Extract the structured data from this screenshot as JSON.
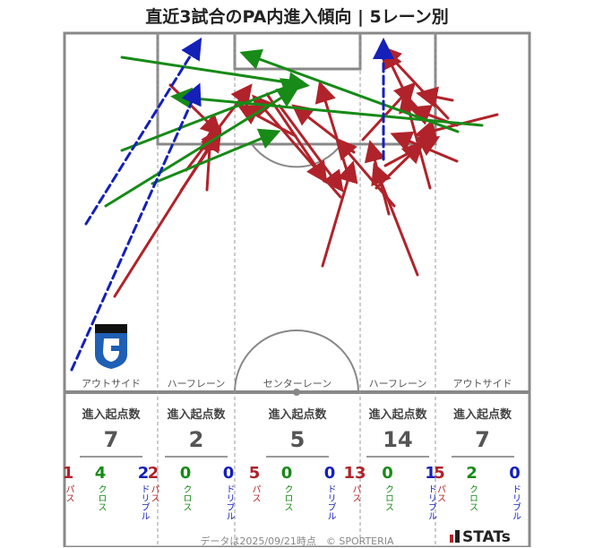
{
  "title": "直近3試合のPA内進入傾向 | 5レーン別",
  "lanes": [
    {
      "label": "アウトサイド",
      "header": "進入起点数",
      "total": "7",
      "pass": "1",
      "cross": "4",
      "dribble": "2"
    },
    {
      "label": "ハーフレーン",
      "header": "進入起点数",
      "total": "2",
      "pass": "2",
      "cross": "0",
      "dribble": "0"
    },
    {
      "label": "センターレーン",
      "header": "進入起点数",
      "total": "5",
      "pass": "5",
      "cross": "0",
      "dribble": "0"
    },
    {
      "label": "ハーフレーン",
      "header": "進入起点数",
      "total": "14",
      "pass": "13",
      "cross": "0",
      "dribble": "1"
    },
    {
      "label": "アウトサイド",
      "header": "進入起点数",
      "total": "7",
      "pass": "5",
      "cross": "2",
      "dribble": "0"
    }
  ],
  "stat_labels": {
    "pass": "パス",
    "cross": "クロス",
    "dribble": "ドリブル"
  },
  "colors": {
    "pass": "#b0232a",
    "cross": "#178a17",
    "dribble": "#1420b8"
  },
  "footer": "データは2025/09/21時点　© SPORTERIA",
  "brand": "STATs",
  "logo": "gamba-osaka-crest-icon"
}
